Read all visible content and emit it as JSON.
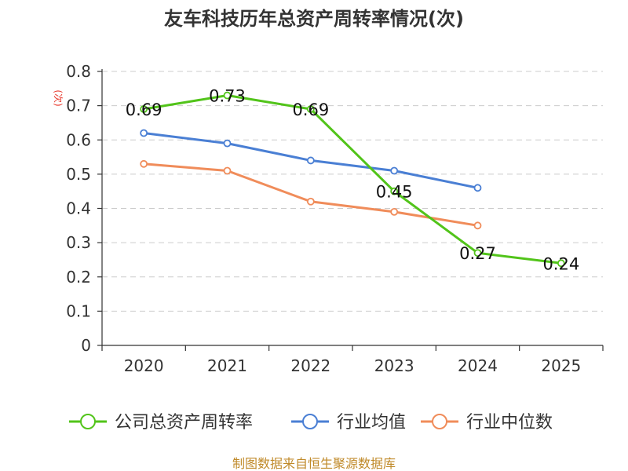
{
  "chart_data": {
    "type": "line",
    "title": "友车科技历年总资产周转率情况(次)",
    "ylabel": "(次)",
    "xlabel": "",
    "ylim": [
      0,
      0.8
    ],
    "yticks": [
      "0",
      "0.1",
      "0.2",
      "0.3",
      "0.4",
      "0.5",
      "0.6",
      "0.7",
      "0.8"
    ],
    "categories": [
      "2020",
      "2021",
      "2022",
      "2023",
      "2024",
      "2025"
    ],
    "grid": true,
    "legend_position": "bottom",
    "series": [
      {
        "name": "公司总资产周转率",
        "color": "#52c41a",
        "values": [
          0.69,
          0.73,
          0.69,
          0.45,
          0.27,
          0.24
        ],
        "data_labels": [
          "0.69",
          "0.73",
          "0.69",
          "0.45",
          "0.27",
          "0.24"
        ]
      },
      {
        "name": "行业均值",
        "color": "#4a7fd4",
        "values": [
          0.62,
          0.59,
          0.54,
          0.51,
          0.46,
          null
        ]
      },
      {
        "name": "行业中位数",
        "color": "#f08c5a",
        "values": [
          0.53,
          0.51,
          0.42,
          0.39,
          0.35,
          null
        ]
      }
    ],
    "source": "制图数据来自恒生聚源数据库"
  }
}
